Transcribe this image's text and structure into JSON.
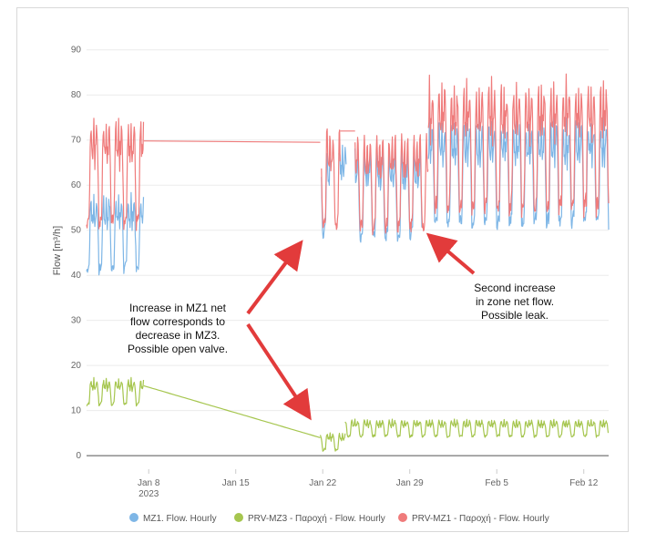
{
  "chart_data": {
    "type": "line",
    "ylabel": "Flow [m³/h]",
    "ylim": [
      -3,
      95
    ],
    "yticks": [
      0,
      10,
      20,
      30,
      40,
      50,
      60,
      70,
      80,
      90
    ],
    "xrange_days": [
      0,
      42
    ],
    "xticks": [
      {
        "day": 5,
        "label": "Jan 8",
        "sub": "2023"
      },
      {
        "day": 12,
        "label": "Jan 15",
        "sub": ""
      },
      {
        "day": 19,
        "label": "Jan 22",
        "sub": ""
      },
      {
        "day": 26,
        "label": "Jan 29",
        "sub": ""
      },
      {
        "day": 33,
        "label": "Feb 5",
        "sub": ""
      },
      {
        "day": 40,
        "label": "Feb 12",
        "sub": ""
      }
    ],
    "grid": "horizontal",
    "legend_position": "bottom",
    "series": [
      {
        "name": "MZ1. Flow. Hourly",
        "color": "#7eb6e6",
        "segments": [
          {
            "start": 0,
            "end": 4.6,
            "base": 40,
            "amp": 18
          },
          {
            "start": 18.9,
            "end": 19.6,
            "base": 48,
            "amp": 20
          },
          {
            "start": 20.3,
            "end": 20.9,
            "base": 50,
            "amp": 20
          },
          {
            "start": 21.6,
            "end": 27.0,
            "base": 47,
            "amp": 21
          },
          {
            "start": 27.5,
            "end": 42,
            "base": 50,
            "amp": 25
          }
        ]
      },
      {
        "name": "PRV-MZ3 - Παροχή - Flow. Hourly",
        "color": "#a6c64f",
        "segments": [
          {
            "start": 0,
            "end": 4.6,
            "base": 11,
            "amp": 6
          },
          {
            "ramp_from": [
              4.6,
              15.5
            ],
            "ramp_to": [
              18.8,
              4
            ]
          },
          {
            "start": 18.8,
            "end": 20.8,
            "base": 1,
            "amp": 4
          },
          {
            "start": 20.8,
            "end": 42,
            "base": 4,
            "amp": 4
          }
        ]
      },
      {
        "name": "PRV-MZ1 - Παροχή - Flow. Hourly",
        "color": "#ef7b7b",
        "segments": [
          {
            "start": 0,
            "end": 4.6,
            "base": 50,
            "amp": 25
          },
          {
            "flat": [
              4.6,
              69.8
            ],
            "flat_to": [
              18.8,
              69.5
            ]
          },
          {
            "start": 18.9,
            "end": 20.4,
            "base": 49,
            "amp": 23
          },
          {
            "flat": [
              20.4,
              72.0
            ],
            "flat_to": [
              21.6,
              72.0
            ]
          },
          {
            "start": 21.6,
            "end": 27.5,
            "base": 49,
            "amp": 22
          },
          {
            "start": 27.5,
            "end": 42,
            "base": 53,
            "amp": 30
          }
        ]
      }
    ],
    "annotations": [
      {
        "lines": [
          "Increase in MZ1 net",
          "flow corresponds to",
          "decrease in MZ3.",
          "Possible open valve."
        ]
      },
      {
        "lines": [
          "Second increase",
          "in zone net flow.",
          "Possible leak."
        ]
      }
    ]
  }
}
